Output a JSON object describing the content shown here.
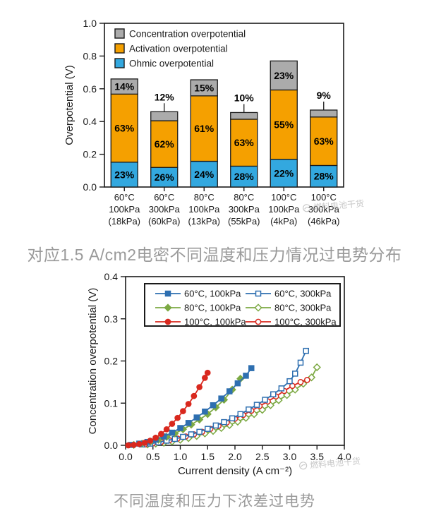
{
  "texts": {
    "caption_top": "对应1.5 A/cm2电密不同温度和压力情况过电势分布",
    "caption_bottom": "不同温度和压力下浓差过电势",
    "watermark": "燃料电池干货"
  },
  "colors": {
    "ohmic_blue": "#33A8DF",
    "activation_orange": "#F5A000",
    "concentration_gray": "#ABABAB",
    "series_blue": "#2E6FB0",
    "series_green": "#7CA943",
    "series_red": "#D9281E",
    "caption_gray": "#9A9A9A",
    "axis_black": "#1a1a1a"
  },
  "chart_data": [
    {
      "type": "bar",
      "stacked": true,
      "ylabel": "Overpotential (V)",
      "ylim": [
        0.0,
        1.0
      ],
      "yticks": [
        "0.0",
        "0.2",
        "0.4",
        "0.6",
        "0.8",
        "1.0"
      ],
      "legend": [
        "Concentration overpotential",
        "Activation overpotential",
        "Ohmic overpotential"
      ],
      "legend_position": "top-left-inside",
      "grid": false,
      "categories": [
        [
          "60°C",
          "100kPa",
          "(18kPa)"
        ],
        [
          "60°C",
          "300kPa",
          "(60kPa)"
        ],
        [
          "80°C",
          "100kPa",
          "(13kPa)"
        ],
        [
          "80°C",
          "300kPa",
          "(55kPa)"
        ],
        [
          "100°C",
          "100kPa",
          "(4kPa)"
        ],
        [
          "100°C",
          "300kPa",
          "(46kPa)"
        ]
      ],
      "totals": [
        0.66,
        0.46,
        0.655,
        0.455,
        0.77,
        0.47
      ],
      "series": [
        {
          "name": "Ohmic overpotential",
          "color_key": "ohmic_blue",
          "pct": [
            23,
            26,
            24,
            28,
            22,
            28
          ]
        },
        {
          "name": "Activation overpotential",
          "color_key": "activation_orange",
          "pct": [
            63,
            62,
            61,
            63,
            55,
            63
          ]
        },
        {
          "name": "Concentration overpotential",
          "color_key": "concentration_gray",
          "pct": [
            14,
            12,
            15,
            10,
            23,
            9
          ]
        }
      ],
      "concentration_label_outside": [
        false,
        true,
        false,
        true,
        false,
        true
      ]
    },
    {
      "type": "line",
      "xlabel": "Current density (A cm⁻²)",
      "ylabel": "Concentration overpotential (V)",
      "xlim": [
        0.0,
        4.0
      ],
      "ylim": [
        0.0,
        0.4
      ],
      "xticks": [
        "0.0",
        "0.5",
        "1.0",
        "1.5",
        "2.0",
        "2.5",
        "3.0",
        "3.5",
        "4.0"
      ],
      "yticks": [
        "0.0",
        "0.1",
        "0.2",
        "0.3",
        "0.4"
      ],
      "legend_position": "top-inside-box",
      "grid": false,
      "series": [
        {
          "name": "60°C, 100kPa",
          "color_key": "series_blue",
          "marker": "square",
          "filled": true,
          "x": [
            0.1,
            0.25,
            0.4,
            0.55,
            0.7,
            0.85,
            1.0,
            1.15,
            1.3,
            1.45,
            1.6,
            1.75,
            1.9,
            2.05,
            2.2,
            2.3
          ],
          "y": [
            0.001,
            0.004,
            0.008,
            0.014,
            0.021,
            0.03,
            0.041,
            0.053,
            0.066,
            0.08,
            0.095,
            0.111,
            0.128,
            0.147,
            0.165,
            0.183
          ]
        },
        {
          "name": "80°C, 100kPa",
          "color_key": "series_green",
          "marker": "diamond",
          "filled": true,
          "x": [
            0.15,
            0.3,
            0.45,
            0.6,
            0.75,
            0.9,
            1.05,
            1.2,
            1.35,
            1.5,
            1.65,
            1.8,
            1.95,
            2.1
          ],
          "y": [
            0.001,
            0.004,
            0.008,
            0.013,
            0.02,
            0.028,
            0.038,
            0.049,
            0.061,
            0.074,
            0.09,
            0.108,
            0.132,
            0.158
          ]
        },
        {
          "name": "100°C, 100kPa",
          "color_key": "series_red",
          "marker": "circle",
          "filled": true,
          "x": [
            0.05,
            0.15,
            0.25,
            0.35,
            0.45,
            0.55,
            0.65,
            0.75,
            0.85,
            0.95,
            1.05,
            1.15,
            1.25,
            1.35,
            1.45,
            1.5
          ],
          "y": [
            0.0,
            0.001,
            0.003,
            0.006,
            0.011,
            0.018,
            0.027,
            0.038,
            0.051,
            0.065,
            0.081,
            0.098,
            0.117,
            0.138,
            0.16,
            0.172
          ]
        },
        {
          "name": "60°C, 300kPa",
          "color_key": "series_blue",
          "marker": "square",
          "filled": false,
          "x": [
            0.3,
            0.45,
            0.6,
            0.75,
            0.9,
            1.05,
            1.2,
            1.35,
            1.5,
            1.65,
            1.8,
            1.95,
            2.1,
            2.25,
            2.4,
            2.55,
            2.7,
            2.85,
            3.0,
            3.1,
            3.2,
            3.3
          ],
          "y": [
            0.002,
            0.004,
            0.007,
            0.011,
            0.015,
            0.02,
            0.026,
            0.032,
            0.039,
            0.047,
            0.055,
            0.064,
            0.074,
            0.085,
            0.096,
            0.108,
            0.121,
            0.135,
            0.152,
            0.17,
            0.196,
            0.224
          ]
        },
        {
          "name": "80°C, 300kPa",
          "color_key": "series_green",
          "marker": "diamond",
          "filled": false,
          "x": [
            0.4,
            0.55,
            0.7,
            0.85,
            1.0,
            1.15,
            1.3,
            1.45,
            1.6,
            1.75,
            1.9,
            2.05,
            2.2,
            2.35,
            2.5,
            2.65,
            2.8,
            2.95,
            3.1,
            3.25,
            3.4,
            3.5
          ],
          "y": [
            0.002,
            0.004,
            0.006,
            0.009,
            0.013,
            0.017,
            0.022,
            0.028,
            0.034,
            0.041,
            0.048,
            0.056,
            0.065,
            0.074,
            0.084,
            0.095,
            0.107,
            0.119,
            0.132,
            0.146,
            0.161,
            0.185
          ]
        },
        {
          "name": "100°C, 300kPa",
          "color_key": "series_red",
          "marker": "circle",
          "filled": false,
          "x": [
            0.35,
            0.5,
            0.65,
            0.8,
            0.95,
            1.1,
            1.25,
            1.4,
            1.55,
            1.7,
            1.85,
            2.0,
            2.15,
            2.3,
            2.45,
            2.6,
            2.75,
            2.9,
            3.05,
            3.2,
            3.32
          ],
          "y": [
            0.002,
            0.005,
            0.008,
            0.012,
            0.016,
            0.021,
            0.026,
            0.032,
            0.039,
            0.046,
            0.054,
            0.063,
            0.072,
            0.082,
            0.093,
            0.104,
            0.116,
            0.129,
            0.141,
            0.15,
            0.155
          ]
        }
      ]
    }
  ]
}
